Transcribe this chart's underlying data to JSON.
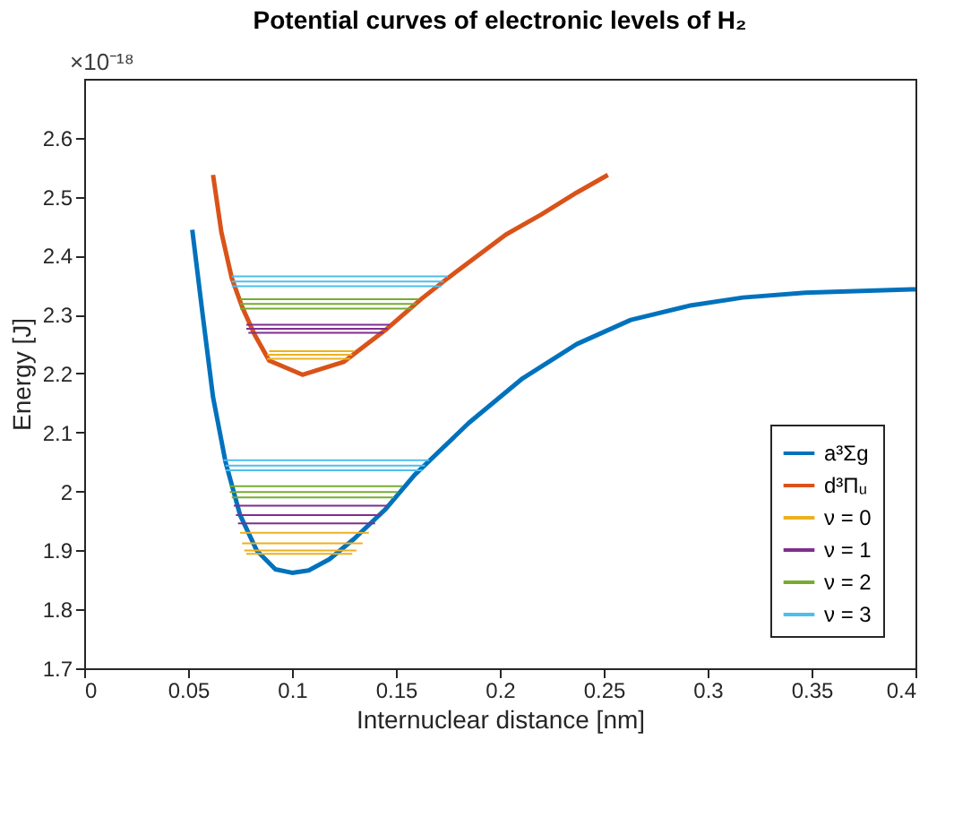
{
  "chart_data": {
    "type": "line",
    "title": "Potential curves of electronic levels of H₂",
    "xlabel": "Internuclear distance [nm]",
    "ylabel": "Energy [J]",
    "annotations": [
      "×10⁻¹⁸"
    ],
    "xlim": [
      0,
      0.4
    ],
    "xticks": [
      0,
      0.05,
      0.1,
      0.15,
      0.2,
      0.25,
      0.3,
      0.35,
      0.4
    ],
    "ylim": [
      1.7,
      2.7
    ],
    "yticks": [
      1.7,
      1.8,
      1.9,
      2,
      2.1,
      2.2,
      2.3,
      2.4,
      2.5,
      2.6
    ],
    "grid": false,
    "legend": "bottom right",
    "line_style": "solid",
    "series": [
      {
        "name": "a³Σg",
        "color": "#0072bd",
        "x": [
          0.052,
          0.057,
          0.062,
          0.068,
          0.075,
          0.083,
          0.092,
          0.1,
          0.108,
          0.118,
          0.13,
          0.145,
          0.159,
          0.185,
          0.211,
          0.237,
          0.263,
          0.291,
          0.317,
          0.347,
          0.4
        ],
        "values": [
          2.444,
          2.3,
          2.16,
          2.05,
          1.96,
          1.9,
          1.868,
          1.862,
          1.866,
          1.885,
          1.92,
          1.97,
          2.028,
          2.116,
          2.192,
          2.25,
          2.291,
          2.315,
          2.329,
          2.337,
          2.343
        ]
      },
      {
        "name": "d³Πᵤ",
        "color": "#d95319",
        "x": [
          0.062,
          0.066,
          0.071,
          0.076,
          0.082,
          0.089,
          0.105,
          0.125,
          0.145,
          0.162,
          0.175,
          0.203,
          0.22,
          0.237,
          0.252
        ],
        "values": [
          2.537,
          2.44,
          2.362,
          2.313,
          2.266,
          2.222,
          2.198,
          2.22,
          2.274,
          2.326,
          2.362,
          2.436,
          2.47,
          2.507,
          2.537
        ]
      },
      {
        "name": "ν = 0",
        "color": "#edb120",
        "x": [
          0.088,
          0.128
        ],
        "values": [
          2.225,
          2.225
        ]
      },
      {
        "color": "#edb120",
        "x": [
          0.088,
          0.129
        ],
        "values": [
          2.232,
          2.232
        ]
      },
      {
        "color": "#edb120",
        "x": [
          0.089,
          0.13
        ],
        "values": [
          2.238,
          2.238
        ]
      },
      {
        "color": "#edb120",
        "x": [
          0.078,
          0.129
        ],
        "values": [
          1.894,
          1.894
        ]
      },
      {
        "color": "#edb120",
        "x": [
          0.077,
          0.131
        ],
        "values": [
          1.9,
          1.9
        ]
      },
      {
        "color": "#edb120",
        "x": [
          0.076,
          0.134
        ],
        "values": [
          1.912,
          1.912
        ]
      },
      {
        "color": "#edb120",
        "x": [
          0.075,
          0.137
        ],
        "values": [
          1.93,
          1.93
        ]
      },
      {
        "name": "ν = 1",
        "color": "#7e2f8e",
        "x": [
          0.079,
          0.144
        ],
        "values": [
          2.269,
          2.269
        ]
      },
      {
        "color": "#7e2f8e",
        "x": [
          0.078,
          0.146
        ],
        "values": [
          2.276,
          2.276
        ]
      },
      {
        "color": "#7e2f8e",
        "x": [
          0.078,
          0.147
        ],
        "values": [
          2.283,
          2.283
        ]
      },
      {
        "color": "#7e2f8e",
        "x": [
          0.074,
          0.14
        ],
        "values": [
          1.946,
          1.946
        ]
      },
      {
        "color": "#7e2f8e",
        "x": [
          0.073,
          0.143
        ],
        "values": [
          1.96,
          1.96
        ]
      },
      {
        "color": "#7e2f8e",
        "x": [
          0.072,
          0.146
        ],
        "values": [
          1.976,
          1.976
        ]
      },
      {
        "name": "ν = 2",
        "color": "#77ac30",
        "x": [
          0.075,
          0.158
        ],
        "values": [
          2.31,
          2.31
        ]
      },
      {
        "color": "#77ac30",
        "x": [
          0.075,
          0.16
        ],
        "values": [
          2.318,
          2.318
        ]
      },
      {
        "color": "#77ac30",
        "x": [
          0.075,
          0.161
        ],
        "values": [
          2.326,
          2.326
        ]
      },
      {
        "color": "#77ac30",
        "x": [
          0.071,
          0.149
        ],
        "values": [
          1.99,
          1.99
        ]
      },
      {
        "color": "#77ac30",
        "x": [
          0.07,
          0.151
        ],
        "values": [
          1.999,
          1.999
        ]
      },
      {
        "color": "#77ac30",
        "x": [
          0.07,
          0.153
        ],
        "values": [
          2.009,
          2.009
        ]
      },
      {
        "name": "ν = 3",
        "color": "#4dbeee",
        "x": [
          0.071,
          0.172
        ],
        "values": [
          2.348,
          2.348
        ]
      },
      {
        "color": "#4dbeee",
        "x": [
          0.071,
          0.173
        ],
        "values": [
          2.356,
          2.356
        ]
      },
      {
        "color": "#4dbeee",
        "x": [
          0.071,
          0.175
        ],
        "values": [
          2.365,
          2.365
        ]
      },
      {
        "color": "#4dbeee",
        "x": [
          0.068,
          0.163
        ],
        "values": [
          2.036,
          2.036
        ]
      },
      {
        "color": "#4dbeee",
        "x": [
          0.068,
          0.164
        ],
        "values": [
          2.044,
          2.044
        ]
      },
      {
        "color": "#4dbeee",
        "x": [
          0.067,
          0.166
        ],
        "values": [
          2.053,
          2.053
        ]
      }
    ]
  }
}
